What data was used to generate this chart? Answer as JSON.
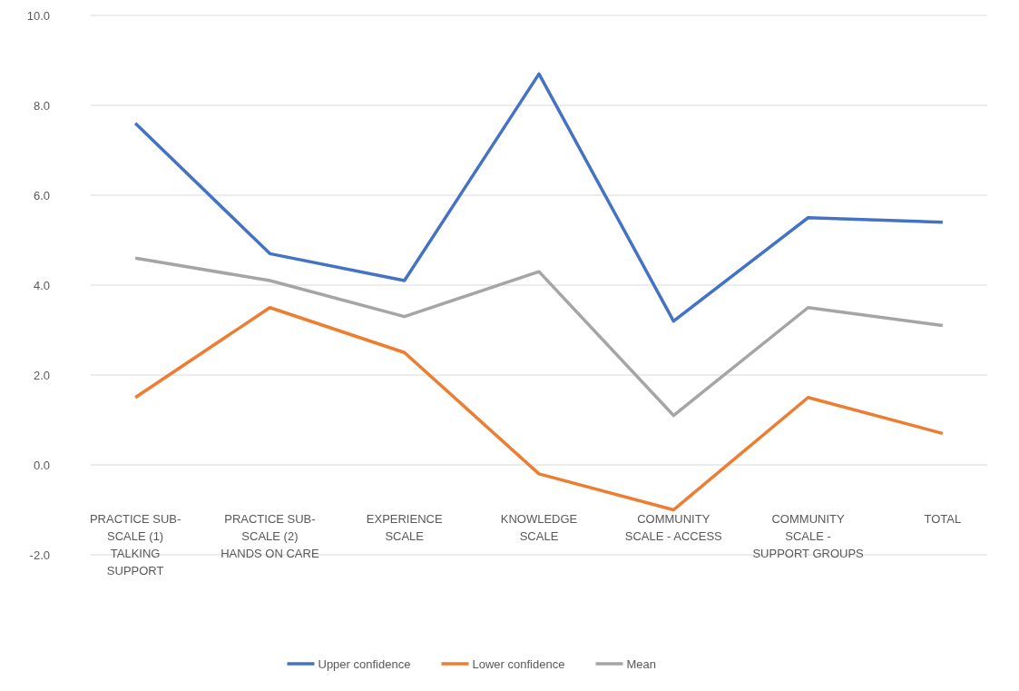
{
  "chart_data": {
    "type": "line",
    "categories": [
      "PRACTICE SUB-SCALE (1) TALKING SUPPORT",
      "PRACTICE SUB-SCALE (2) HANDS ON CARE",
      "EXPERIENCE SCALE",
      "KNOWLEDGE SCALE",
      "COMMUNITY SCALE - ACCESS",
      "COMMUNITY SCALE - SUPPORT GROUPS",
      "TOTAL"
    ],
    "series": [
      {
        "name": "Upper confidence",
        "color": "#4472c4",
        "values": [
          7.6,
          4.7,
          4.1,
          8.7,
          3.2,
          5.5,
          5.4
        ]
      },
      {
        "name": "Lower confidence",
        "color": "#ed7d31",
        "values": [
          1.5,
          3.5,
          2.5,
          -0.2,
          -1.0,
          1.5,
          0.7
        ]
      },
      {
        "name": "Mean",
        "color": "#a5a5a5",
        "values": [
          4.6,
          4.1,
          3.3,
          4.3,
          1.1,
          3.5,
          3.1
        ]
      }
    ],
    "ylim": [
      -2,
      10
    ],
    "yticks": [
      {
        "value": -2,
        "label": "-2.0"
      },
      {
        "value": 0,
        "label": "0.0"
      },
      {
        "value": 2,
        "label": "2.0"
      },
      {
        "value": 4,
        "label": "4.0"
      },
      {
        "value": 6,
        "label": "6.0"
      },
      {
        "value": 8,
        "label": "8.0"
      },
      {
        "value": 10,
        "label": "10.0"
      }
    ],
    "grid": "y",
    "legend": "bottom",
    "marker": "none",
    "line_style": "solid"
  }
}
